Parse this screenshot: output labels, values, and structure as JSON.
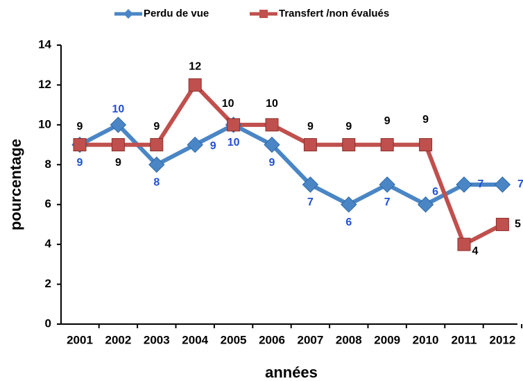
{
  "chart_data": {
    "type": "line",
    "xlabel": "années",
    "ylabel": "pourcentage",
    "categories": [
      "2001",
      "2002",
      "2003",
      "2004",
      "2005",
      "2006",
      "2007",
      "2008",
      "2009",
      "2010",
      "2011",
      "2012"
    ],
    "series": [
      {
        "name": "Perdu de vue",
        "color": "#4a86c5",
        "label_color": "#1f4fd6",
        "marker": "diamond",
        "values": [
          9,
          10,
          8,
          9,
          10,
          9,
          7,
          6,
          7,
          6,
          7,
          7
        ]
      },
      {
        "name": "Transfert /non évalués",
        "color": "#c0504d",
        "label_color": "#000000",
        "marker": "square",
        "values": [
          9,
          9,
          9,
          12,
          10,
          10,
          9,
          9,
          9,
          9,
          4,
          5
        ]
      }
    ],
    "ylim": [
      0,
      14
    ],
    "yticks": [
      0,
      2,
      4,
      6,
      8,
      10,
      12,
      14
    ],
    "grid": false
  }
}
